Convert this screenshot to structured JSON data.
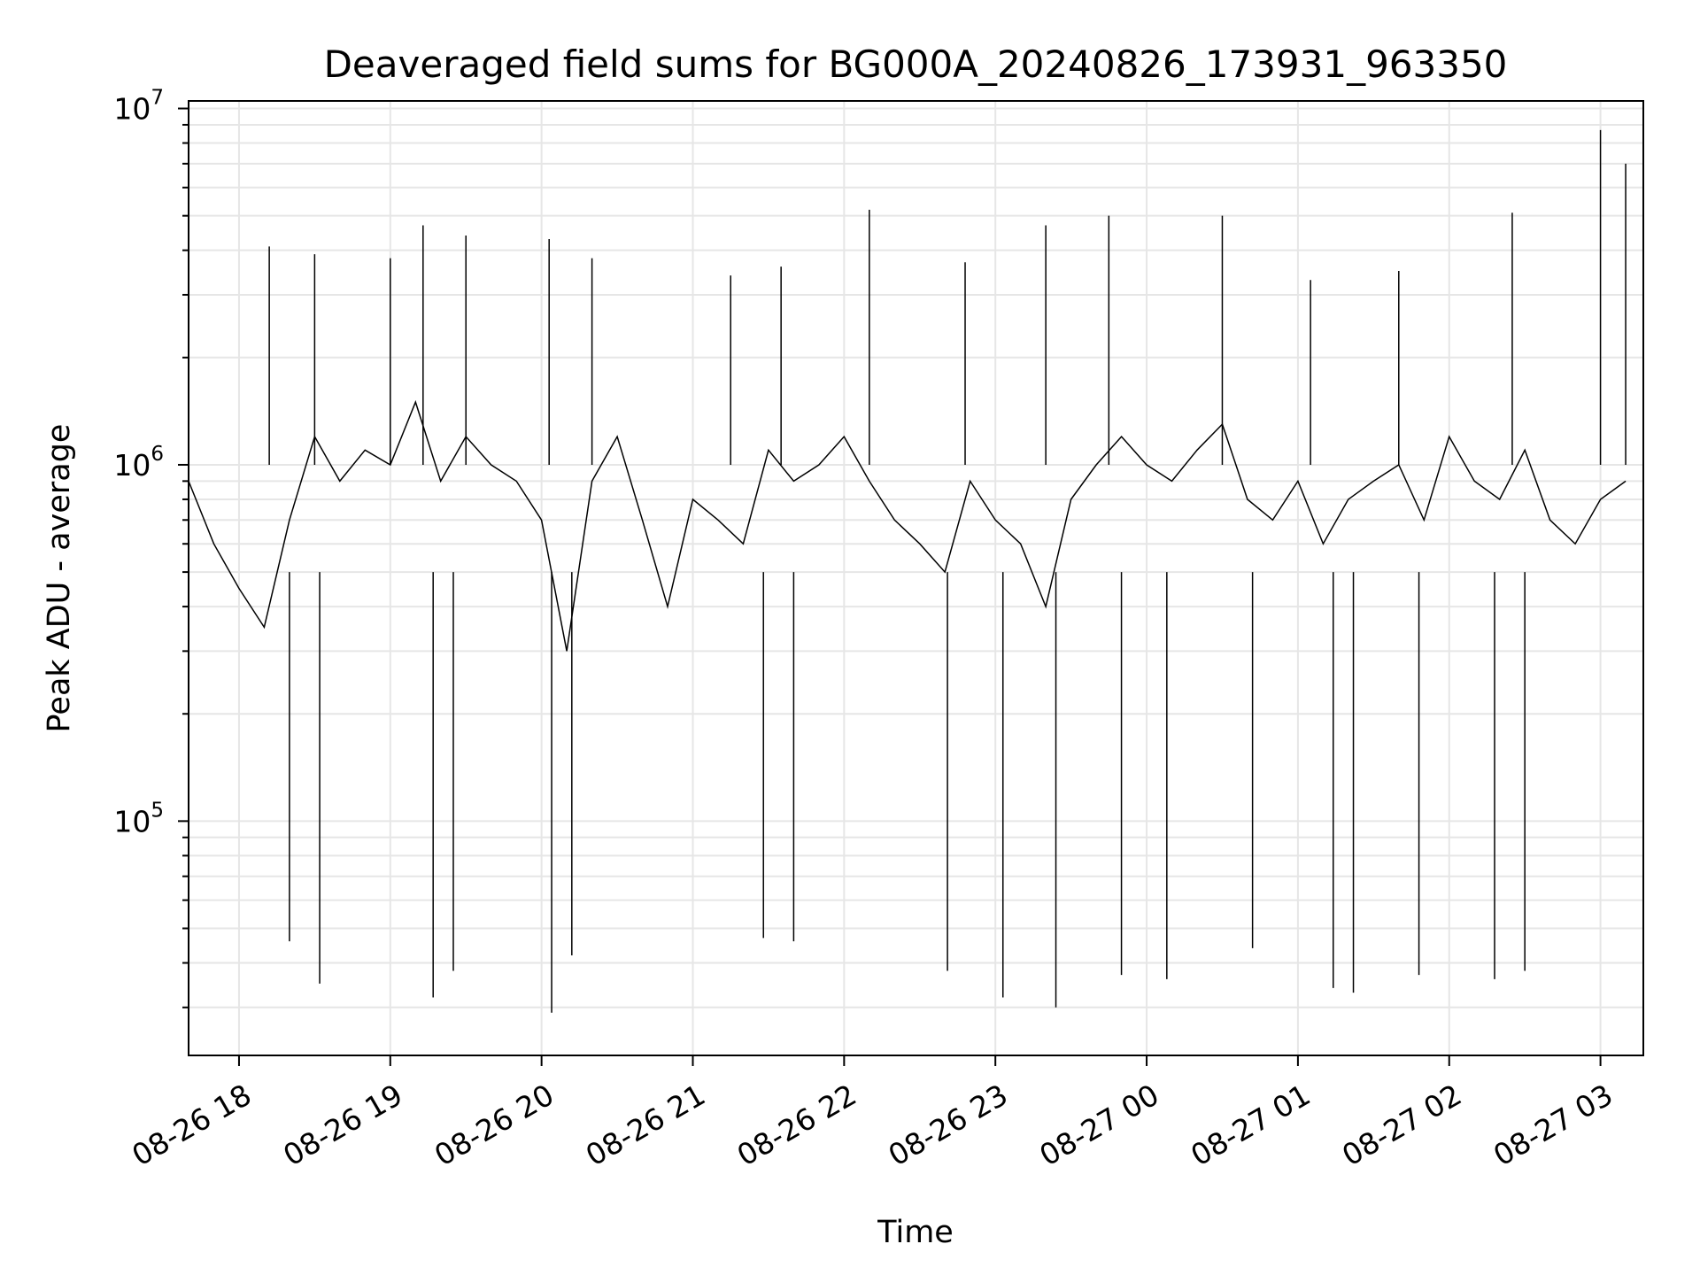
{
  "chart_data": {
    "type": "line",
    "title": "Deaveraged field sums for BG000A_20240826_173931_963350",
    "xlabel": "Time",
    "ylabel": "Peak ADU - average",
    "yscale": "log",
    "xlim": [
      "2024-08-26 17:40",
      "2024-08-27 03:17"
    ],
    "ylim": [
      22000,
      10500000
    ],
    "grid": true,
    "line_color": "#000000",
    "grid_color": "#e6e6e6",
    "x_ticks": [
      {
        "value": "2024-08-26 18:00",
        "label": "08-26 18"
      },
      {
        "value": "2024-08-26 19:00",
        "label": "08-26 19"
      },
      {
        "value": "2024-08-26 20:00",
        "label": "08-26 20"
      },
      {
        "value": "2024-08-26 21:00",
        "label": "08-26 21"
      },
      {
        "value": "2024-08-26 22:00",
        "label": "08-26 22"
      },
      {
        "value": "2024-08-26 23:00",
        "label": "08-26 23"
      },
      {
        "value": "2024-08-27 00:00",
        "label": "08-27 00"
      },
      {
        "value": "2024-08-27 01:00",
        "label": "08-27 01"
      },
      {
        "value": "2024-08-27 02:00",
        "label": "08-27 02"
      },
      {
        "value": "2024-08-27 03:00",
        "label": "08-27 03"
      }
    ],
    "y_ticks": [
      {
        "value": 100000,
        "base": "10",
        "exponent": "5"
      },
      {
        "value": 1000000,
        "base": "10",
        "exponent": "6"
      },
      {
        "value": 10000000,
        "base": "10",
        "exponent": "7"
      }
    ],
    "series": [
      {
        "sampling": "approximately one reading every 10 minutes; the original trace is far denser",
        "x": [
          "2024-08-26 17:40",
          "2024-08-26 17:50",
          "2024-08-26 18:00",
          "2024-08-26 18:10",
          "2024-08-26 18:20",
          "2024-08-26 18:30",
          "2024-08-26 18:40",
          "2024-08-26 18:50",
          "2024-08-26 19:00",
          "2024-08-26 19:10",
          "2024-08-26 19:20",
          "2024-08-26 19:30",
          "2024-08-26 19:40",
          "2024-08-26 19:50",
          "2024-08-26 20:00",
          "2024-08-26 20:10",
          "2024-08-26 20:20",
          "2024-08-26 20:30",
          "2024-08-26 20:40",
          "2024-08-26 20:50",
          "2024-08-26 21:00",
          "2024-08-26 21:10",
          "2024-08-26 21:20",
          "2024-08-26 21:30",
          "2024-08-26 21:40",
          "2024-08-26 21:50",
          "2024-08-26 22:00",
          "2024-08-26 22:10",
          "2024-08-26 22:20",
          "2024-08-26 22:30",
          "2024-08-26 22:40",
          "2024-08-26 22:50",
          "2024-08-26 23:00",
          "2024-08-26 23:10",
          "2024-08-26 23:20",
          "2024-08-26 23:30",
          "2024-08-26 23:40",
          "2024-08-26 23:50",
          "2024-08-27 00:00",
          "2024-08-27 00:10",
          "2024-08-27 00:20",
          "2024-08-27 00:30",
          "2024-08-27 00:40",
          "2024-08-27 00:50",
          "2024-08-27 01:00",
          "2024-08-27 01:10",
          "2024-08-27 01:20",
          "2024-08-27 01:30",
          "2024-08-27 01:40",
          "2024-08-27 01:50",
          "2024-08-27 02:00",
          "2024-08-27 02:10",
          "2024-08-27 02:20",
          "2024-08-27 02:30",
          "2024-08-27 02:40",
          "2024-08-27 02:50",
          "2024-08-27 03:00",
          "2024-08-27 03:10"
        ],
        "y": [
          900000,
          600000,
          450000,
          350000,
          700000,
          1200000,
          900000,
          1100000,
          1000000,
          1500000,
          900000,
          1200000,
          1000000,
          900000,
          700000,
          300000,
          900000,
          1200000,
          700000,
          400000,
          800000,
          700000,
          600000,
          1100000,
          900000,
          1000000,
          1200000,
          900000,
          700000,
          600000,
          500000,
          900000,
          700000,
          600000,
          400000,
          800000,
          1000000,
          1200000,
          1000000,
          900000,
          1100000,
          1300000,
          800000,
          700000,
          900000,
          600000,
          800000,
          900000,
          1000000,
          700000,
          1200000,
          900000,
          800000,
          1100000,
          700000,
          600000,
          800000,
          900000
        ]
      }
    ],
    "peaks": {
      "x": [
        "2024-08-26 18:12",
        "2024-08-26 18:30",
        "2024-08-26 19:00",
        "2024-08-26 19:13",
        "2024-08-26 19:30",
        "2024-08-26 20:03",
        "2024-08-26 20:20",
        "2024-08-26 21:15",
        "2024-08-26 21:35",
        "2024-08-26 22:10",
        "2024-08-26 22:48",
        "2024-08-26 23:20",
        "2024-08-26 23:45",
        "2024-08-27 00:30",
        "2024-08-27 01:05",
        "2024-08-27 01:40",
        "2024-08-27 02:25",
        "2024-08-27 03:00",
        "2024-08-27 03:10"
      ],
      "y": [
        4100000,
        3900000,
        3800000,
        4700000,
        4400000,
        4300000,
        3800000,
        3400000,
        3600000,
        5200000,
        3700000,
        4700000,
        5000000,
        5000000,
        3300000,
        3500000,
        5100000,
        8700000,
        7000000
      ]
    },
    "dips": {
      "x": [
        "2024-08-26 18:20",
        "2024-08-26 18:32",
        "2024-08-26 19:17",
        "2024-08-26 19:25",
        "2024-08-26 20:04",
        "2024-08-26 20:12",
        "2024-08-26 21:28",
        "2024-08-26 21:40",
        "2024-08-26 22:41",
        "2024-08-26 23:03",
        "2024-08-26 23:24",
        "2024-08-26 23:50",
        "2024-08-27 00:08",
        "2024-08-27 00:42",
        "2024-08-27 01:14",
        "2024-08-27 01:22",
        "2024-08-27 01:48",
        "2024-08-27 02:18",
        "2024-08-27 02:30"
      ],
      "y": [
        46000,
        35000,
        32000,
        38000,
        29000,
        42000,
        47000,
        46000,
        38000,
        32000,
        30000,
        37000,
        36000,
        44000,
        34000,
        33000,
        37000,
        36000,
        38000
      ]
    }
  }
}
